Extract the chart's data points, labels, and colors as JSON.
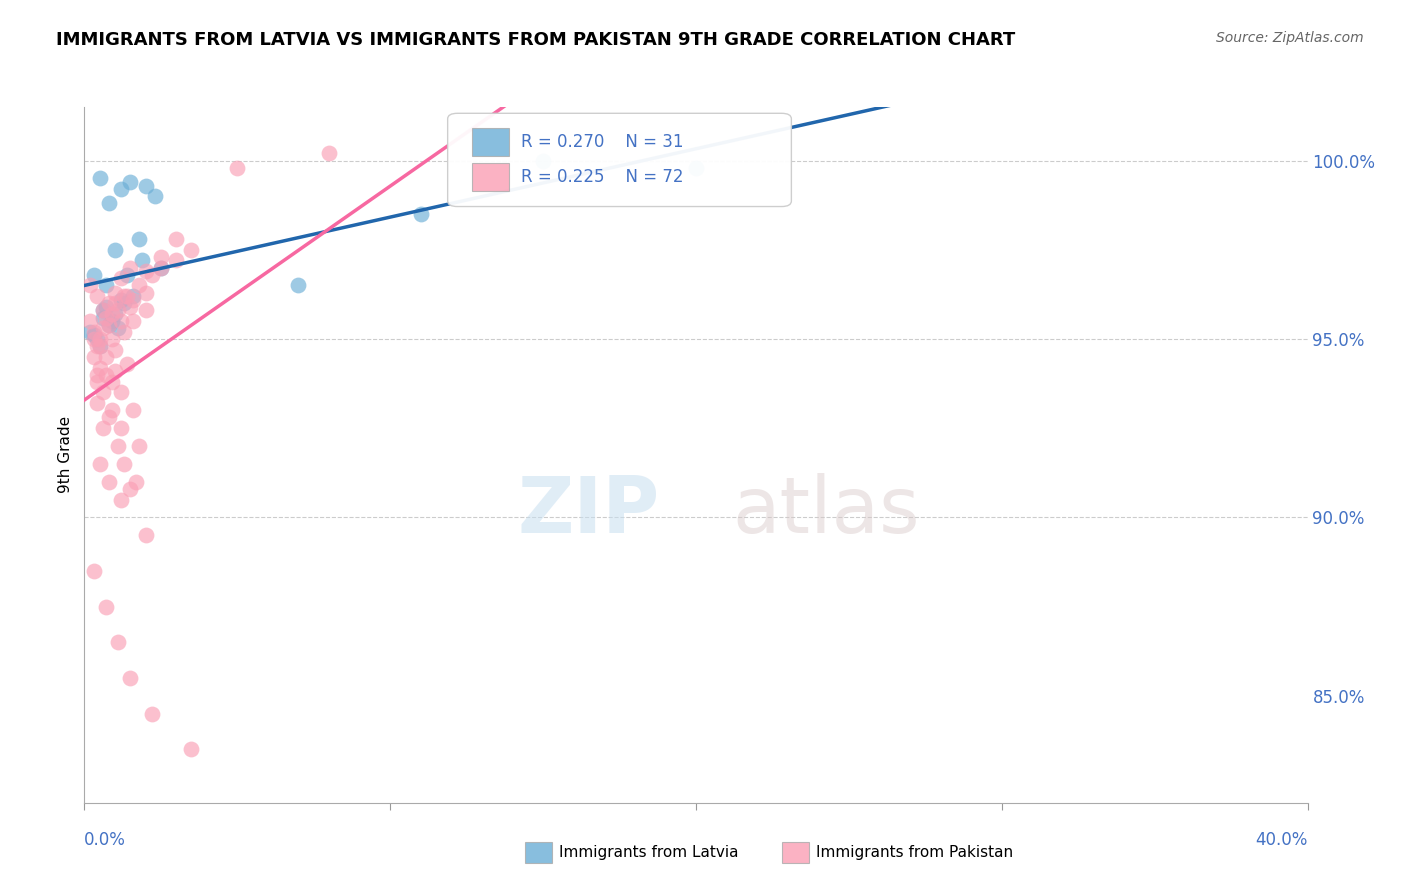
{
  "title": "IMMIGRANTS FROM LATVIA VS IMMIGRANTS FROM PAKISTAN 9TH GRADE CORRELATION CHART",
  "source": "Source: ZipAtlas.com",
  "xlim": [
    0.0,
    40.0
  ],
  "ylim": [
    82.0,
    101.5
  ],
  "blue_R": 0.27,
  "blue_N": 31,
  "pink_R": 0.225,
  "pink_N": 72,
  "blue_color": "#6baed6",
  "pink_color": "#fa9fb5",
  "blue_line_color": "#2166ac",
  "pink_line_color": "#f768a1",
  "legend_label_blue": "Immigrants from Latvia",
  "legend_label_pink": "Immigrants from Pakistan",
  "watermark_zip": "ZIP",
  "watermark_atlas": "atlas",
  "ytick_positions": [
    85.0,
    90.0,
    95.0,
    100.0
  ],
  "ytick_labels": [
    "85.0%",
    "90.0%",
    "95.0%",
    "100.0%"
  ],
  "grid_lines": [
    90.0,
    95.0,
    100.0
  ],
  "blue_scatter_x": [
    0.5,
    1.2,
    1.5,
    2.0,
    2.3,
    0.8,
    1.0,
    1.8,
    0.3,
    0.7,
    1.3,
    0.6,
    0.9,
    1.1,
    0.4,
    1.6,
    2.5,
    0.2,
    0.5,
    1.4,
    0.6,
    0.8,
    1.0,
    1.2,
    0.3,
    0.7,
    1.9,
    11.0,
    15.0,
    20.0,
    7.0
  ],
  "blue_scatter_y": [
    99.5,
    99.2,
    99.4,
    99.3,
    99.0,
    98.8,
    97.5,
    97.8,
    96.8,
    96.5,
    96.0,
    95.8,
    95.5,
    95.3,
    95.0,
    96.2,
    97.0,
    95.2,
    94.8,
    96.8,
    95.6,
    95.4,
    95.7,
    96.1,
    95.1,
    95.9,
    97.2,
    98.5,
    100.0,
    99.8,
    96.5
  ],
  "pink_scatter_x": [
    0.2,
    0.3,
    0.4,
    0.5,
    0.6,
    0.7,
    0.8,
    0.9,
    1.0,
    1.1,
    1.2,
    1.3,
    1.5,
    1.6,
    1.8,
    2.0,
    2.2,
    2.5,
    3.0,
    3.5,
    0.3,
    0.5,
    0.7,
    0.9,
    1.0,
    1.2,
    1.4,
    1.6,
    0.4,
    0.6,
    0.8,
    1.1,
    1.3,
    1.5,
    1.7,
    0.2,
    0.4,
    0.6,
    0.8,
    1.0,
    1.2,
    1.5,
    2.0,
    2.5,
    3.0,
    0.3,
    0.5,
    0.7,
    1.0,
    1.3,
    1.6,
    2.0,
    0.4,
    0.6,
    0.9,
    1.2,
    1.8,
    0.3,
    0.7,
    1.1,
    1.5,
    2.2,
    3.5,
    0.5,
    0.8,
    1.2,
    2.0,
    0.4,
    0.9,
    1.4,
    5.0,
    8.0
  ],
  "pink_scatter_y": [
    95.5,
    95.2,
    94.8,
    95.0,
    95.3,
    95.6,
    95.4,
    95.7,
    96.0,
    95.8,
    95.5,
    96.2,
    95.9,
    96.1,
    96.5,
    96.3,
    96.8,
    97.0,
    97.2,
    97.5,
    94.5,
    94.2,
    94.0,
    93.8,
    94.1,
    93.5,
    94.3,
    93.0,
    93.2,
    92.5,
    92.8,
    92.0,
    91.5,
    90.8,
    91.0,
    96.5,
    96.2,
    95.8,
    96.0,
    96.3,
    96.7,
    97.0,
    96.9,
    97.3,
    97.8,
    95.0,
    94.8,
    94.5,
    94.7,
    95.2,
    95.5,
    95.8,
    94.0,
    93.5,
    93.0,
    92.5,
    92.0,
    88.5,
    87.5,
    86.5,
    85.5,
    84.5,
    83.5,
    91.5,
    91.0,
    90.5,
    89.5,
    93.8,
    95.0,
    96.2,
    99.8,
    100.2
  ]
}
